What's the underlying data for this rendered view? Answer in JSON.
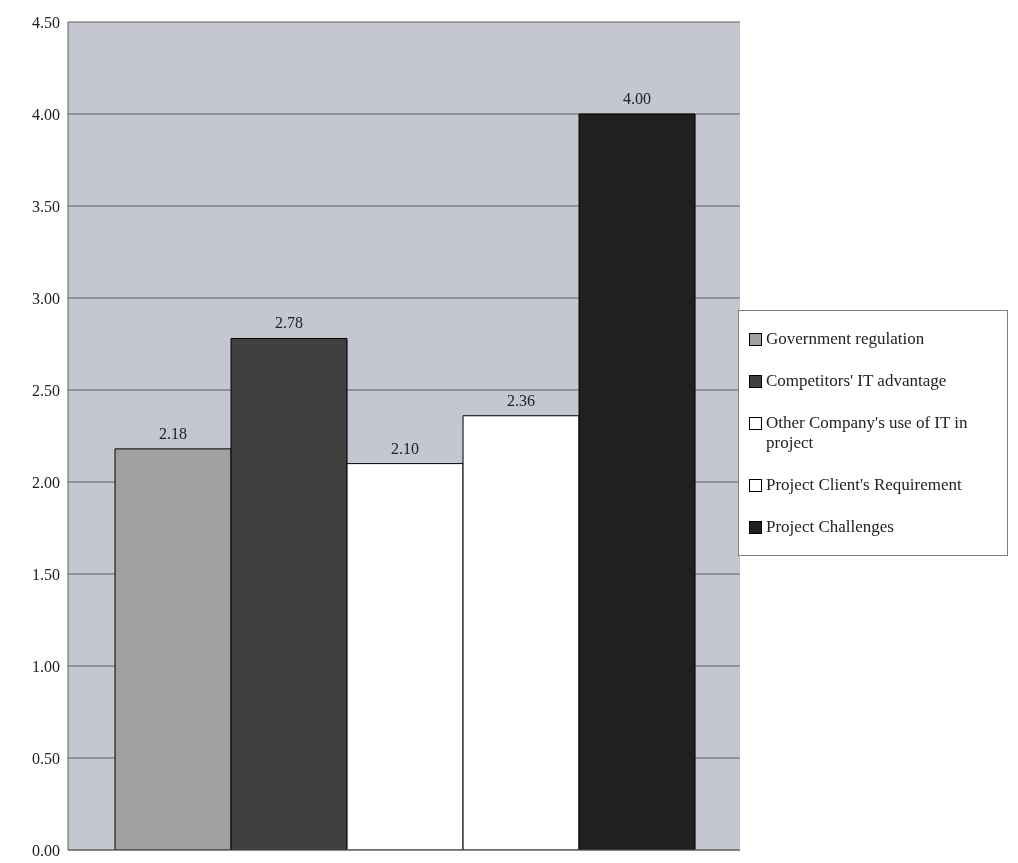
{
  "chart_data": {
    "type": "bar",
    "categories": [
      null
    ],
    "series": [
      {
        "name": "Government regulation",
        "color": "#a0a0a0",
        "values": [
          2.18
        ],
        "value_labels": [
          "2.18"
        ]
      },
      {
        "name": "Competitors' IT advantage",
        "color": "#404040",
        "values": [
          2.78
        ],
        "value_labels": [
          "2.78"
        ]
      },
      {
        "name": "Other Company's use of IT in project",
        "color": "#ffffff",
        "values": [
          2.1
        ],
        "value_labels": [
          "2.10"
        ]
      },
      {
        "name": "Project Client's Requirement",
        "color": "#ffffff",
        "values": [
          2.36
        ],
        "value_labels": [
          "2.36"
        ]
      },
      {
        "name": "Project Challenges",
        "color": "#202020",
        "values": [
          4.0
        ],
        "value_labels": [
          "4.00"
        ]
      }
    ],
    "ylim": [
      0,
      4.5
    ],
    "yticks": [
      {
        "value": 0,
        "label": "0.00"
      },
      {
        "value": 0.5,
        "label": "0.50"
      },
      {
        "value": 1,
        "label": "1.00"
      },
      {
        "value": 1.5,
        "label": "1.50"
      },
      {
        "value": 2,
        "label": "2.00"
      },
      {
        "value": 2.5,
        "label": "2.50"
      },
      {
        "value": 3,
        "label": "3.00"
      },
      {
        "value": 3.5,
        "label": "3.50"
      },
      {
        "value": 4,
        "label": "4.00"
      },
      {
        "value": 4.5,
        "label": "4.50"
      }
    ],
    "grid": "y",
    "legend": "right"
  }
}
